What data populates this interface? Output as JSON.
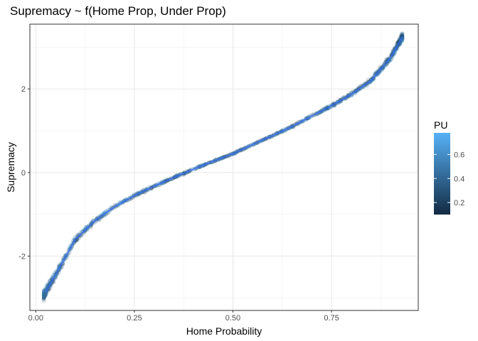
{
  "chart_data": {
    "type": "scatter",
    "title": "Supremacy ~ f(Home Prop, Under Prop)",
    "xlabel": "Home Probability",
    "ylabel": "Supremacy",
    "xlim": [
      -0.015,
      0.97
    ],
    "ylim": [
      -3.3,
      3.55
    ],
    "x_ticks": [
      0.0,
      0.25,
      0.5,
      0.75
    ],
    "x_tick_labels": [
      "0.00",
      "0.25",
      "0.50",
      "0.75"
    ],
    "y_ticks": [
      -2,
      0,
      2
    ],
    "y_tick_labels": [
      "-2",
      "0",
      "2"
    ],
    "grid": true,
    "legend": {
      "title": "PU",
      "position": "right",
      "range": [
        0.1,
        0.78
      ],
      "ticks": [
        0.2,
        0.4,
        0.6
      ],
      "tick_labels": [
        "0.2",
        "0.4",
        "0.6"
      ],
      "colors": [
        "#132b43",
        "#56b1f7"
      ]
    },
    "trend": {
      "name": "fit",
      "color": "#3366ff",
      "points": [
        [
          0.025,
          -2.85
        ],
        [
          0.05,
          -2.45
        ],
        [
          0.1,
          -1.6
        ],
        [
          0.15,
          -1.15
        ],
        [
          0.2,
          -0.82
        ],
        [
          0.25,
          -0.55
        ],
        [
          0.3,
          -0.33
        ],
        [
          0.35,
          -0.12
        ],
        [
          0.4,
          0.08
        ],
        [
          0.45,
          0.27
        ],
        [
          0.5,
          0.45
        ],
        [
          0.55,
          0.67
        ],
        [
          0.6,
          0.88
        ],
        [
          0.65,
          1.1
        ],
        [
          0.7,
          1.35
        ],
        [
          0.75,
          1.6
        ],
        [
          0.8,
          1.87
        ],
        [
          0.85,
          2.2
        ],
        [
          0.9,
          2.75
        ],
        [
          0.93,
          3.25
        ]
      ]
    },
    "points": {
      "x_range": [
        0.02,
        0.93
      ],
      "count": 2200,
      "alpha": 0.25
    }
  }
}
